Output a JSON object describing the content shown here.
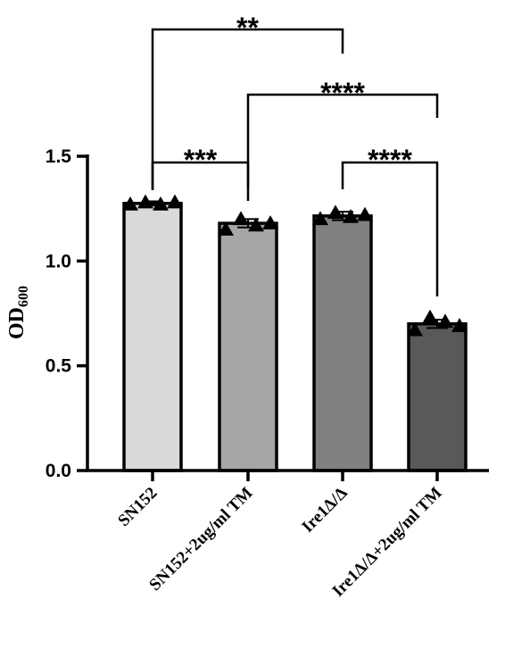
{
  "chart_data": {
    "type": "bar",
    "title": "",
    "xlabel": "",
    "ylabel": {
      "base": "OD",
      "subscript": "600"
    },
    "ylim": [
      0,
      1.5
    ],
    "yticks": [
      "0.0",
      "0.5",
      "1.0",
      "1.5"
    ],
    "grid": false,
    "legend": "none",
    "categories": [
      "SN152",
      "SN152+2ug/ml TM",
      "Ire1Δ/Δ",
      "Ire1Δ/Δ+2ug/ml TM"
    ],
    "values": [
      1.275,
      1.18,
      1.215,
      0.7
    ],
    "errors": [
      0.01,
      0.02,
      0.02,
      0.02
    ],
    "points": [
      [
        1.27,
        1.28,
        1.27,
        1.28
      ],
      [
        1.15,
        1.2,
        1.17,
        1.18
      ],
      [
        1.2,
        1.23,
        1.21,
        1.22
      ],
      [
        0.67,
        0.73,
        0.71,
        0.69
      ]
    ],
    "bar_colors": [
      "#d9d9d9",
      "#a6a6a6",
      "#808080",
      "#595959"
    ],
    "significance": [
      {
        "from": 0,
        "to": 2,
        "label": "**"
      },
      {
        "from": 1,
        "to": 3,
        "label": "****"
      },
      {
        "from": 0,
        "to": 1,
        "label": "***"
      },
      {
        "from": 2,
        "to": 3,
        "label": "****"
      }
    ]
  }
}
